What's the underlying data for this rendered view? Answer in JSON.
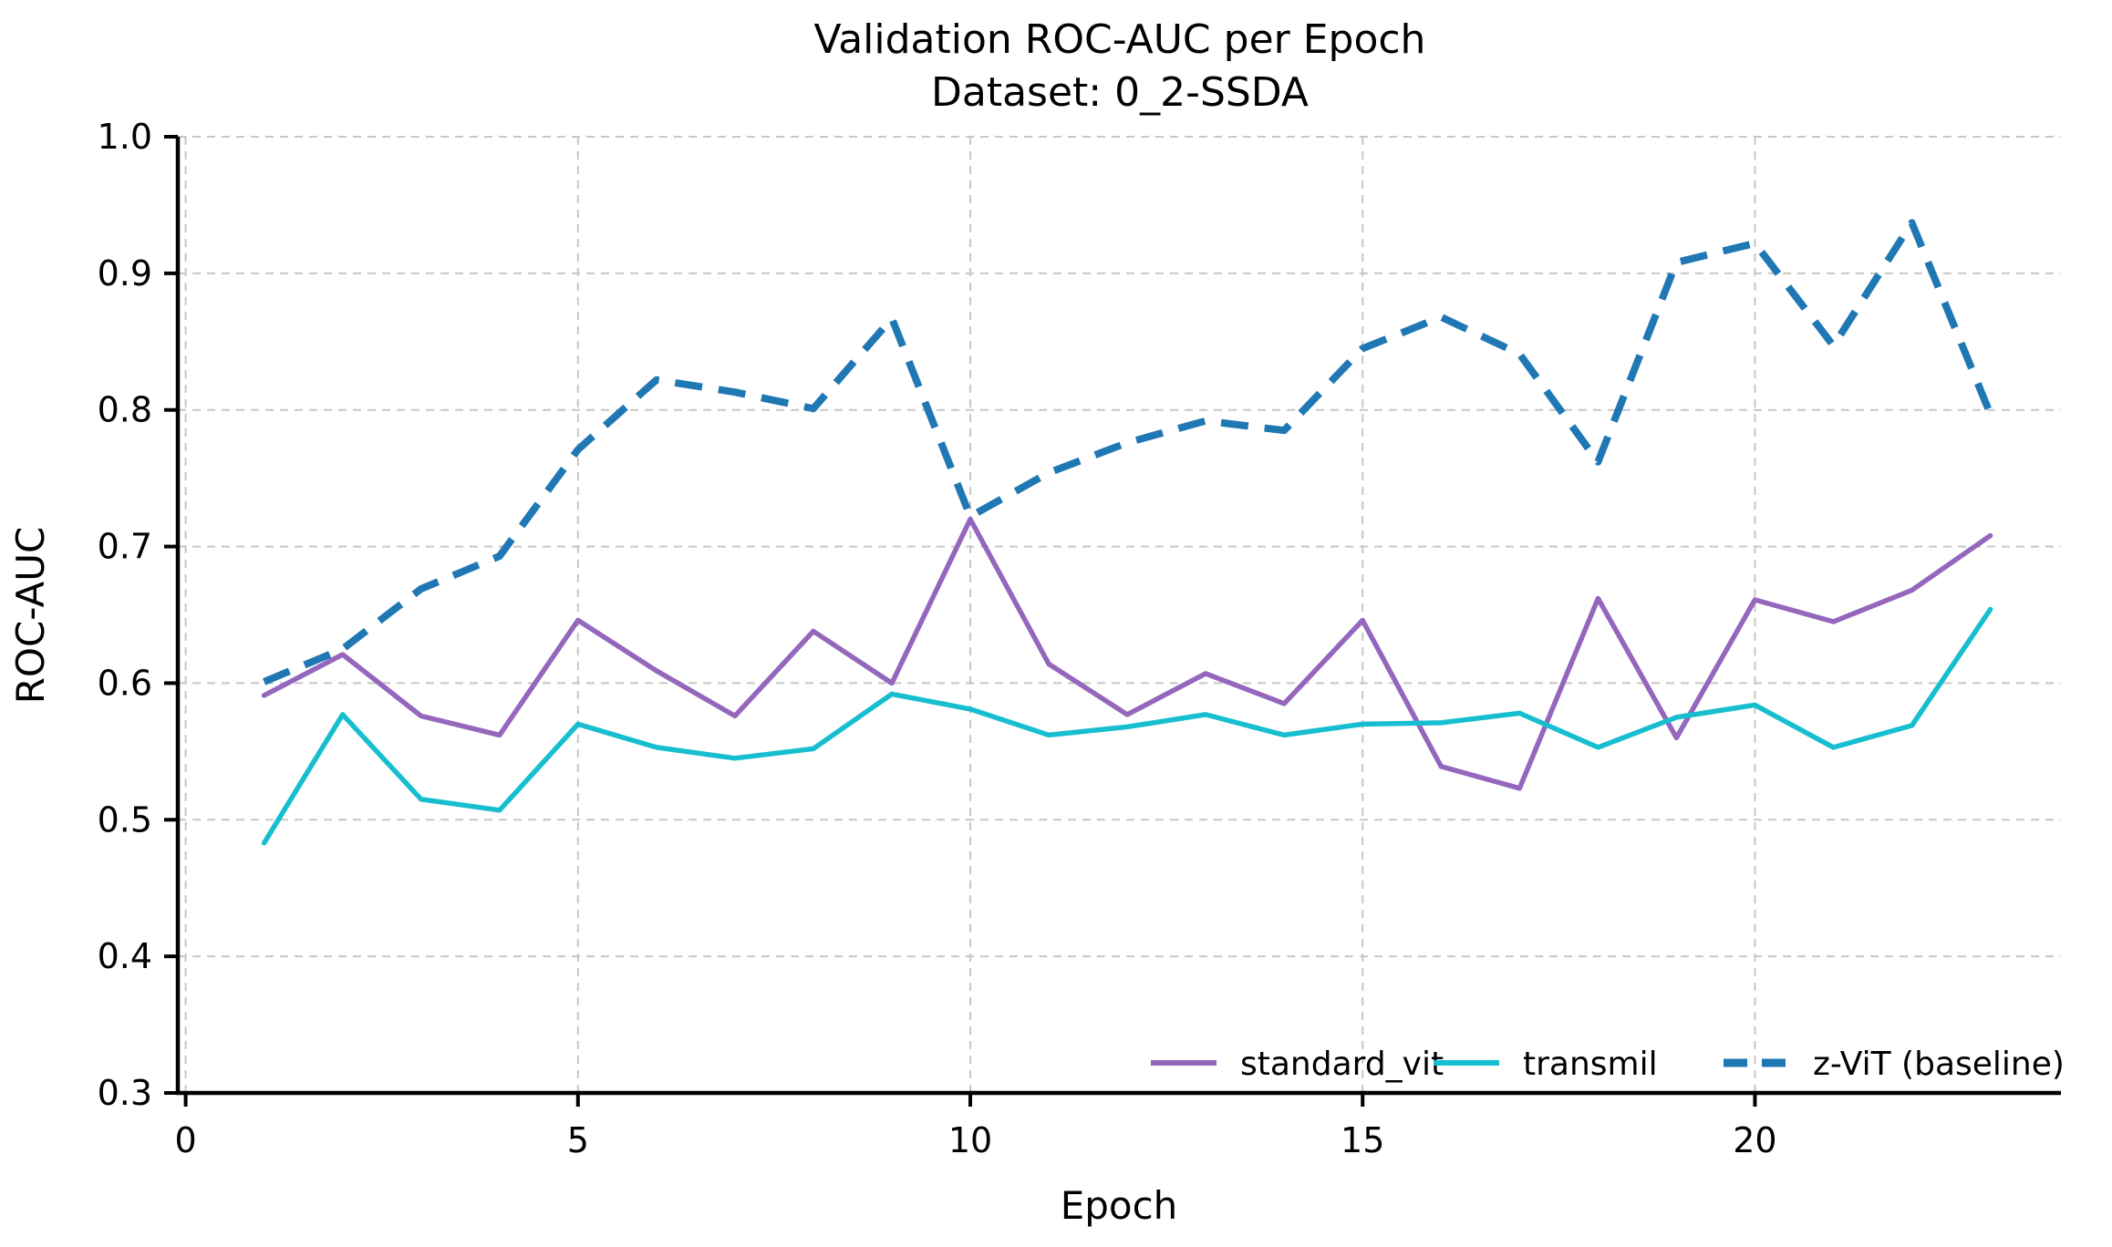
{
  "chart_data": {
    "type": "line",
    "title": "Validation ROC-AUC per Epoch",
    "subtitle": "Dataset: 0_2-SSDA",
    "xlabel": "Epoch",
    "ylabel": "ROC-AUC",
    "xlim": [
      -0.1,
      23.9
    ],
    "ylim": [
      0.3,
      1.0
    ],
    "x_ticks": [
      0,
      5,
      10,
      15,
      20
    ],
    "y_ticks": [
      "0.3",
      "0.4",
      "0.5",
      "0.6",
      "0.7",
      "0.8",
      "0.9",
      "1.0"
    ],
    "grid": true,
    "grid_color": "#c7c7c7",
    "axis_color": "#000000",
    "legend_position": "lower right",
    "x": [
      1,
      2,
      3,
      4,
      5,
      6,
      7,
      8,
      9,
      10,
      11,
      12,
      13,
      14,
      15,
      16,
      17,
      18,
      19,
      20,
      21,
      22,
      23
    ],
    "series": [
      {
        "name": "standard_vit",
        "color": "#9467bd",
        "style": "solid",
        "values": [
          0.591,
          0.621,
          0.576,
          0.562,
          0.646,
          0.609,
          0.576,
          0.638,
          0.6,
          0.72,
          0.614,
          0.577,
          0.607,
          0.585,
          0.646,
          0.539,
          0.523,
          0.662,
          0.56,
          0.661,
          0.645,
          0.668,
          0.708
        ]
      },
      {
        "name": "transmil",
        "color": "#17becf",
        "style": "solid",
        "values": [
          0.483,
          0.577,
          0.515,
          0.507,
          0.57,
          0.553,
          0.545,
          0.552,
          0.592,
          0.581,
          0.562,
          0.568,
          0.577,
          0.562,
          0.57,
          0.571,
          0.578,
          0.553,
          0.575,
          0.584,
          0.553,
          0.569,
          0.654
        ]
      },
      {
        "name": "z-ViT (baseline)",
        "color": "#1f77b4",
        "style": "dashed",
        "values": [
          0.601,
          0.625,
          0.669,
          0.693,
          0.771,
          0.822,
          0.813,
          0.801,
          0.867,
          0.722,
          0.754,
          0.776,
          0.792,
          0.785,
          0.845,
          0.868,
          0.841,
          0.762,
          0.908,
          0.922,
          0.847,
          0.937,
          0.797
        ]
      }
    ]
  }
}
